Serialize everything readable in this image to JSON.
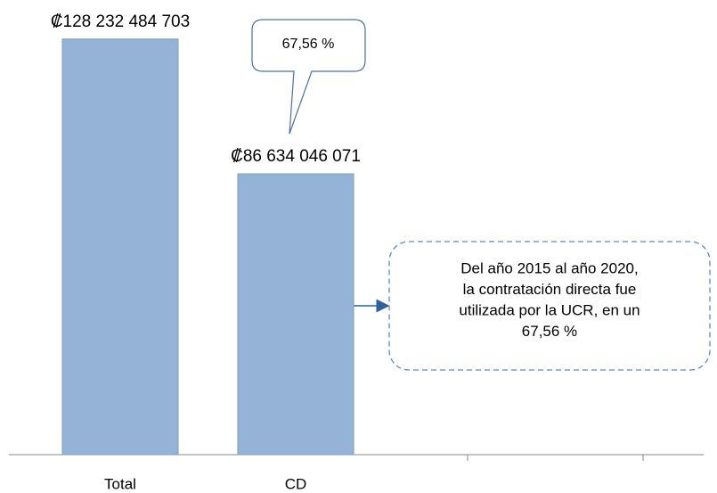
{
  "chart_data": {
    "type": "bar",
    "categories": [
      "Total",
      "CD",
      null,
      null
    ],
    "values": [
      128232484703,
      86634046071,
      null,
      null
    ],
    "value_labels": [
      "₡128 232 484 703",
      "₡86 634 046 071",
      null,
      null
    ],
    "color": "#95b3d7",
    "ylim": [
      0,
      140000000000
    ],
    "annotations": {
      "callout": "67,56 %",
      "note": [
        "Del año 2015 al año 2020,",
        "la contratación directa fue",
        "utilizada por la UCR, en un",
        "67,56 %"
      ]
    }
  }
}
